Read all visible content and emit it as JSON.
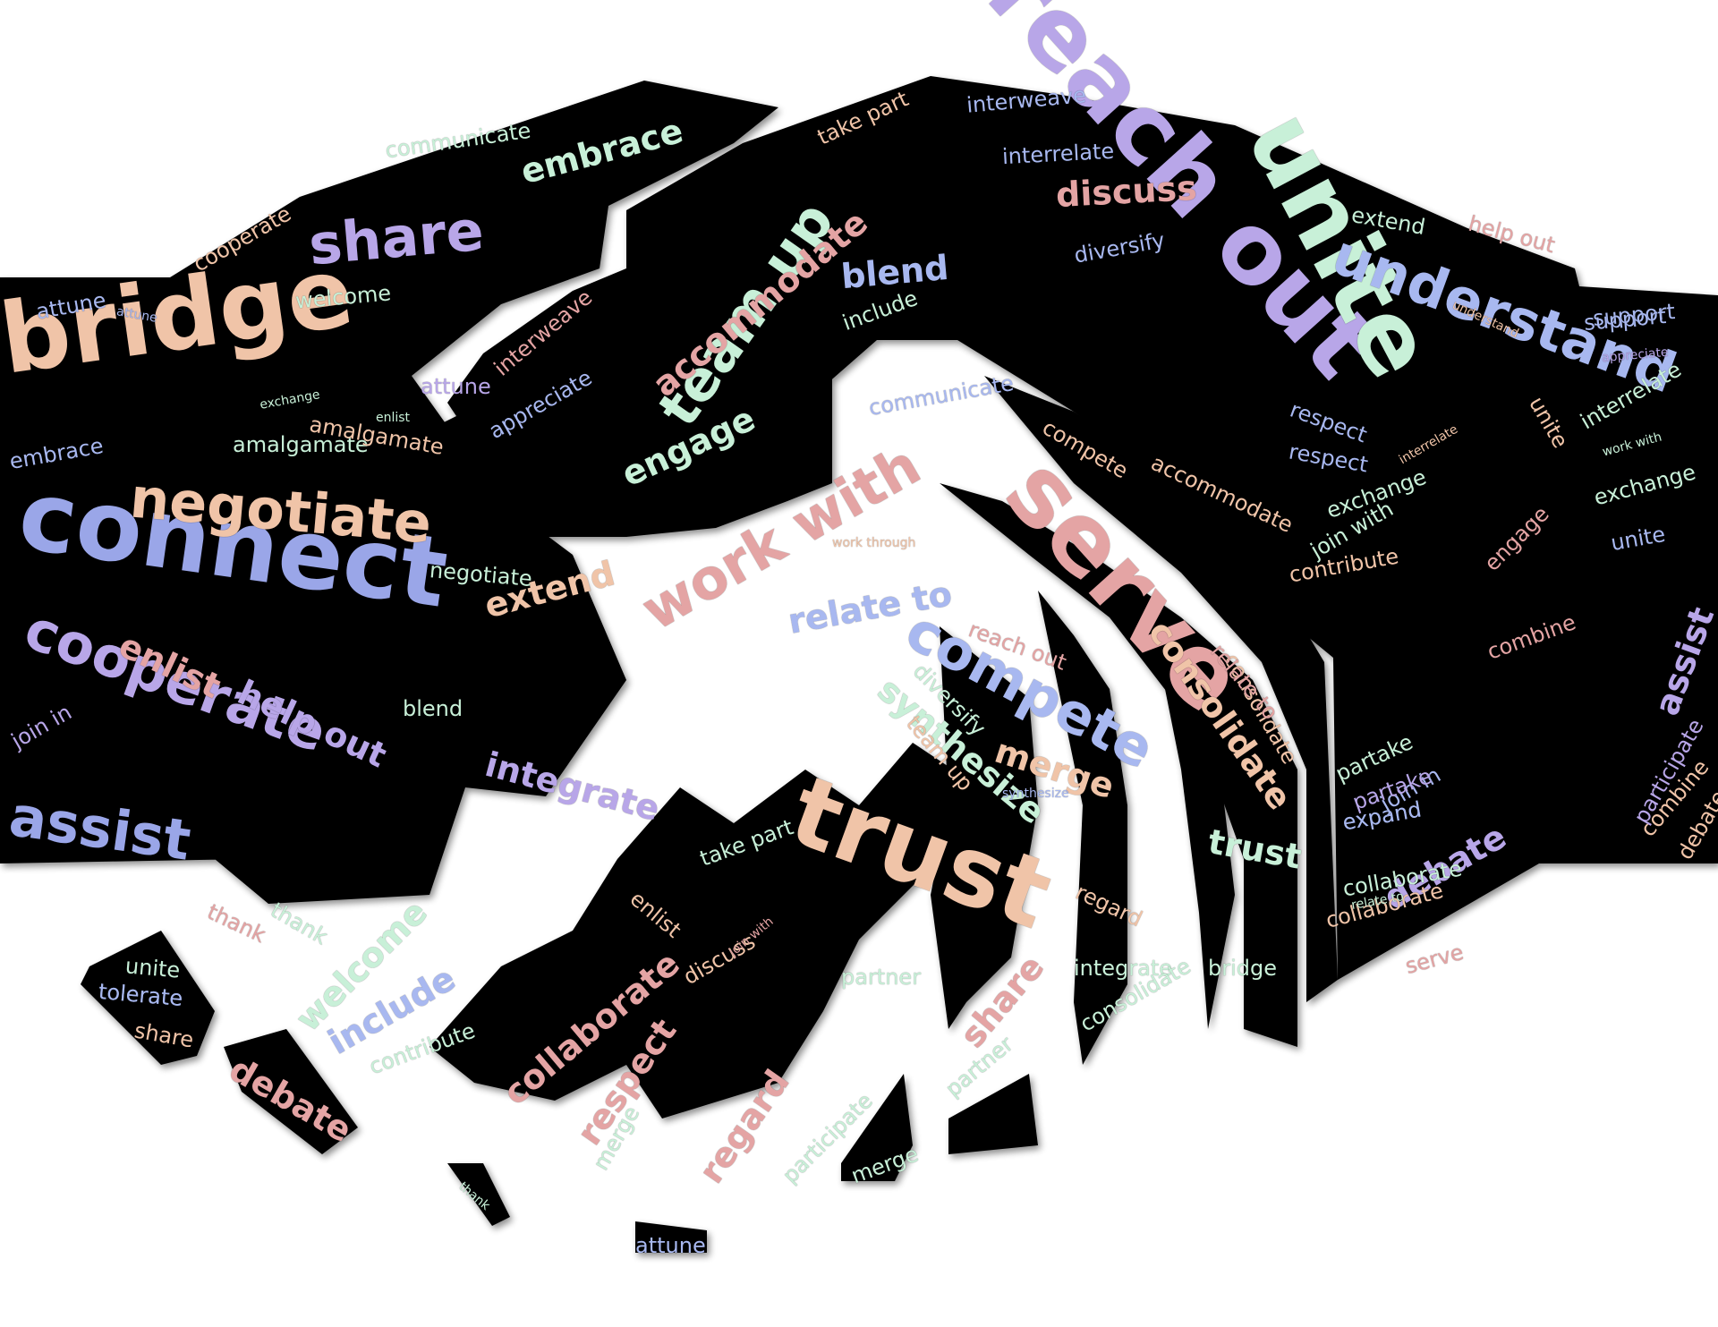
{
  "colors": {
    "background": "#ffffff",
    "shape": "#050505",
    "lavender": "#b8a6e8",
    "periwinkle": "#9aa6e8",
    "peach": "#f0c4a8",
    "pink": "#e4a4a4",
    "mint": "#c8f0d8",
    "blue": "#a8b8f0"
  },
  "words": [
    {
      "text": "connect",
      "color": "periwinkle"
    },
    {
      "text": "reach out",
      "color": "lavender"
    },
    {
      "text": "unite",
      "color": "mint"
    },
    {
      "text": "bridge",
      "color": "peach"
    },
    {
      "text": "serve",
      "color": "pink"
    },
    {
      "text": "trust",
      "color": "peach"
    },
    {
      "text": "cooperate",
      "color": "lavender"
    },
    {
      "text": "assist",
      "color": "periwinkle"
    },
    {
      "text": "share",
      "color": "lavender"
    },
    {
      "text": "understand",
      "color": "blue"
    },
    {
      "text": "negotiate",
      "color": "peach"
    },
    {
      "text": "work with",
      "color": "pink"
    },
    {
      "text": "team up",
      "color": "mint"
    },
    {
      "text": "compete",
      "color": "blue"
    },
    {
      "text": "embrace",
      "color": "mint"
    },
    {
      "text": "discuss",
      "color": "pink"
    },
    {
      "text": "debate",
      "color": "lavender"
    },
    {
      "text": "engage",
      "color": "mint"
    },
    {
      "text": "merge",
      "color": "peach"
    },
    {
      "text": "respect",
      "color": "pink"
    },
    {
      "text": "regard",
      "color": "pink"
    },
    {
      "text": "collaborate",
      "color": "pink"
    },
    {
      "text": "include",
      "color": "blue"
    },
    {
      "text": "welcome",
      "color": "mint"
    },
    {
      "text": "help out",
      "color": "lavender"
    },
    {
      "text": "integrate",
      "color": "lavender"
    },
    {
      "text": "extend",
      "color": "peach"
    },
    {
      "text": "relate to",
      "color": "blue"
    },
    {
      "text": "consolidate",
      "color": "peach"
    },
    {
      "text": "synthesize",
      "color": "mint"
    },
    {
      "text": "accommodate",
      "color": "pink"
    },
    {
      "text": "enlist",
      "color": "pink"
    },
    {
      "text": "blend",
      "color": "blue"
    },
    {
      "text": "interrelate",
      "color": "blue"
    },
    {
      "text": "interweave",
      "color": "blue"
    },
    {
      "text": "communicate",
      "color": "mint"
    },
    {
      "text": "diversify",
      "color": "blue"
    },
    {
      "text": "appreciate",
      "color": "blue"
    },
    {
      "text": "support",
      "color": "blue"
    },
    {
      "text": "attune",
      "color": "blue"
    },
    {
      "text": "amalgamate",
      "color": "mint"
    },
    {
      "text": "join in",
      "color": "lavender"
    },
    {
      "text": "expand",
      "color": "blue"
    },
    {
      "text": "combine",
      "color": "peach"
    },
    {
      "text": "partake",
      "color": "mint"
    },
    {
      "text": "participate",
      "color": "lavender"
    },
    {
      "text": "thank",
      "color": "pink"
    },
    {
      "text": "tolerate",
      "color": "blue"
    },
    {
      "text": "contribute",
      "color": "peach"
    },
    {
      "text": "exchange",
      "color": "mint"
    },
    {
      "text": "partner",
      "color": "mint"
    },
    {
      "text": "consolidate",
      "color": "peach"
    },
    {
      "text": "work through",
      "color": "peach"
    },
    {
      "text": "take part",
      "color": "peach"
    },
    {
      "text": "respect",
      "color": "blue"
    },
    {
      "text": "regard",
      "color": "peach"
    },
    {
      "text": "interrelate",
      "color": "mint"
    },
    {
      "text": "exchange",
      "color": "mint"
    },
    {
      "text": "unite",
      "color": "blue"
    },
    {
      "text": "assist",
      "color": "lavender"
    },
    {
      "text": "combine",
      "color": "pink"
    },
    {
      "text": "debate",
      "color": "peach"
    },
    {
      "text": "debate",
      "color": "pink"
    },
    {
      "text": "share",
      "color": "peach"
    },
    {
      "text": "tolerate",
      "color": "blue"
    },
    {
      "text": "unite",
      "color": "mint"
    },
    {
      "text": "thank",
      "color": "mint"
    },
    {
      "text": "attune",
      "color": "blue"
    },
    {
      "text": "merge",
      "color": "mint"
    },
    {
      "text": "participate",
      "color": "mint"
    },
    {
      "text": "trust",
      "color": "mint"
    },
    {
      "text": "bridge",
      "color": "mint"
    },
    {
      "text": "share",
      "color": "pink"
    },
    {
      "text": "partner",
      "color": "mint"
    },
    {
      "text": "serve",
      "color": "pink"
    },
    {
      "text": "expand",
      "color": "blue"
    },
    {
      "text": "collaborate",
      "color": "mint"
    },
    {
      "text": "support",
      "color": "blue"
    },
    {
      "text": "extend",
      "color": "mint"
    },
    {
      "text": "help out",
      "color": "pink"
    },
    {
      "text": "appreciate",
      "color": "lavender"
    },
    {
      "text": "work with",
      "color": "mint"
    },
    {
      "text": "embrace",
      "color": "blue"
    },
    {
      "text": "amalgamate",
      "color": "peach"
    },
    {
      "text": "negotiate",
      "color": "mint"
    },
    {
      "text": "understand",
      "color": "peach"
    },
    {
      "text": "attune",
      "color": "lavender"
    },
    {
      "text": "exchange",
      "color": "mint"
    },
    {
      "text": "enlist",
      "color": "mint"
    },
    {
      "text": "compete",
      "color": "peach"
    },
    {
      "text": "welcome",
      "color": "mint"
    },
    {
      "text": "communicate",
      "color": "blue"
    },
    {
      "text": "engage",
      "color": "pink"
    },
    {
      "text": "respect",
      "color": "blue"
    },
    {
      "text": "cooperate",
      "color": "peach"
    },
    {
      "text": "accommodate",
      "color": "peach"
    },
    {
      "text": "relate to",
      "color": "pink"
    },
    {
      "text": "include",
      "color": "mint"
    },
    {
      "text": "diversify",
      "color": "mint"
    },
    {
      "text": "team up",
      "color": "peach"
    },
    {
      "text": "integrate",
      "color": "mint"
    },
    {
      "text": "enlist",
      "color": "peach"
    },
    {
      "text": "consolidate",
      "color": "mint"
    },
    {
      "text": "unite",
      "color": "peach"
    },
    {
      "text": "discuss",
      "color": "peach"
    },
    {
      "text": "join in",
      "color": "blue"
    },
    {
      "text": "partake",
      "color": "lavender"
    },
    {
      "text": "contribute",
      "color": "mint"
    },
    {
      "text": "interweave",
      "color": "pink"
    },
    {
      "text": "synthesize",
      "color": "blue"
    },
    {
      "text": "join with",
      "color": "mint"
    },
    {
      "text": "blend",
      "color": "mint"
    },
    {
      "text": "reach out",
      "color": "pink"
    },
    {
      "text": "interrelate",
      "color": "peach"
    },
    {
      "text": "collaborate",
      "color": "peach"
    },
    {
      "text": "join with",
      "color": "pink"
    },
    {
      "text": "relate to",
      "color": "mint"
    },
    {
      "text": "take part",
      "color": "mint"
    },
    {
      "text": "merge",
      "color": "mint"
    },
    {
      "text": "thank",
      "color": "mint"
    },
    {
      "text": "attune",
      "color": "blue"
    }
  ]
}
